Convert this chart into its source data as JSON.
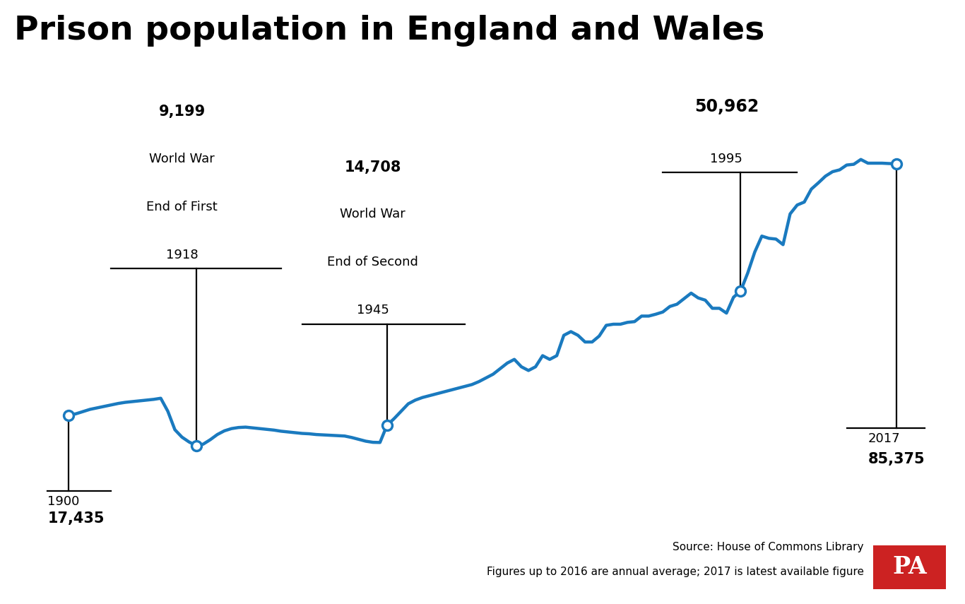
{
  "title": "Prison population in England and Wales",
  "title_fontsize": 34,
  "line_color": "#1a7abf",
  "line_width": 3.2,
  "background_color": "#ffffff",
  "source_line1": "Source: House of Commons Library",
  "source_line2": "Figures up to 2016 are annual average; 2017 is latest available figure",
  "source_fontsize": 11,
  "pa_color": "#cc2222",
  "years": [
    1900,
    1901,
    1902,
    1903,
    1904,
    1905,
    1906,
    1907,
    1908,
    1909,
    1910,
    1911,
    1912,
    1913,
    1914,
    1915,
    1916,
    1917,
    1918,
    1919,
    1920,
    1921,
    1922,
    1923,
    1924,
    1925,
    1926,
    1927,
    1928,
    1929,
    1930,
    1931,
    1932,
    1933,
    1934,
    1935,
    1936,
    1937,
    1938,
    1939,
    1940,
    1941,
    1942,
    1943,
    1944,
    1945,
    1946,
    1947,
    1948,
    1949,
    1950,
    1951,
    1952,
    1953,
    1954,
    1955,
    1956,
    1957,
    1958,
    1959,
    1960,
    1961,
    1962,
    1963,
    1964,
    1965,
    1966,
    1967,
    1968,
    1969,
    1970,
    1971,
    1972,
    1973,
    1974,
    1975,
    1976,
    1977,
    1978,
    1979,
    1980,
    1981,
    1982,
    1983,
    1984,
    1985,
    1986,
    1987,
    1988,
    1989,
    1990,
    1991,
    1992,
    1993,
    1994,
    1995,
    1996,
    1997,
    1998,
    1999,
    2000,
    2001,
    2002,
    2003,
    2004,
    2005,
    2006,
    2007,
    2008,
    2009,
    2010,
    2011,
    2012,
    2013,
    2014,
    2015,
    2016,
    2017
  ],
  "values": [
    17435,
    17800,
    18400,
    19000,
    19400,
    19800,
    20200,
    20600,
    20900,
    21100,
    21300,
    21500,
    21700,
    22000,
    18500,
    13500,
    11500,
    10200,
    9199,
    9600,
    10800,
    12200,
    13200,
    13800,
    14100,
    14200,
    14000,
    13800,
    13600,
    13400,
    13100,
    12900,
    12700,
    12500,
    12400,
    12200,
    12100,
    12000,
    11900,
    11800,
    11400,
    10900,
    10400,
    10100,
    10050,
    14708,
    16500,
    18500,
    20500,
    21500,
    22200,
    22700,
    23200,
    23700,
    24200,
    24700,
    25200,
    25700,
    26500,
    27500,
    28500,
    30000,
    31500,
    32500,
    30500,
    29500,
    30500,
    33500,
    32500,
    33500,
    39000,
    40000,
    39000,
    37200,
    37200,
    38800,
    41700,
    42000,
    42000,
    42500,
    42700,
    44200,
    44200,
    44700,
    45300,
    46800,
    47400,
    48900,
    50400,
    49100,
    48500,
    46300,
    46300,
    45000,
    49300,
    50962,
    55800,
    61500,
    65800,
    65200,
    65000,
    63500,
    71800,
    74200,
    75000,
    78500,
    80200,
    82000,
    83200,
    83700,
    85000,
    85200,
    86500,
    85500,
    85500,
    85500,
    85400,
    85375
  ]
}
